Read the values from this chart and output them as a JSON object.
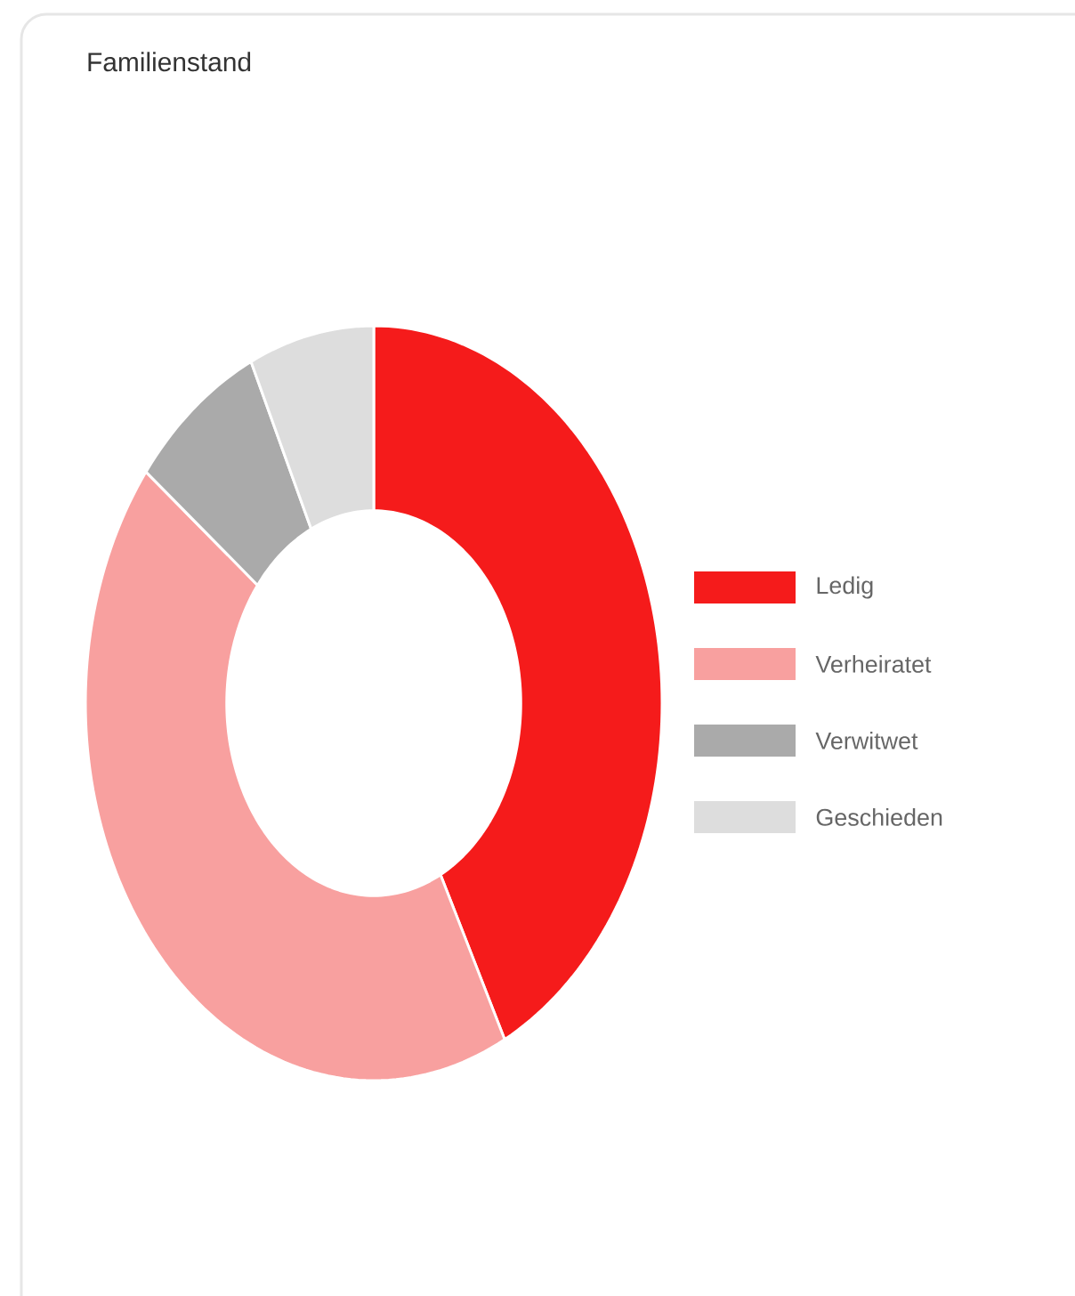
{
  "chart_data": {
    "type": "donut",
    "title": "Familienstand",
    "categories": [
      "Ledig",
      "Verheiratet",
      "Verwitwet",
      "Geschieden"
    ],
    "values": [
      42.5,
      43,
      7.5,
      7
    ],
    "colors": [
      "#f51b1b",
      "#f8a09f",
      "#aaaaaa",
      "#dddddd"
    ],
    "legend": "right"
  }
}
